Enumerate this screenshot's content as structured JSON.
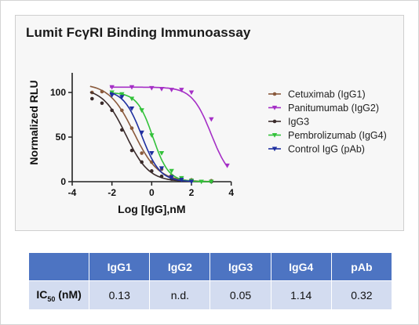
{
  "chart_data": {
    "type": "line",
    "title": "Lumit FcγRI Binding Immunoassay",
    "xlabel": "Log [IgG],nM",
    "ylabel": "Normalized RLU",
    "xlim": [
      -4,
      5
    ],
    "ylim": [
      0,
      115
    ],
    "x_ticks": [
      -4,
      -2,
      0,
      2,
      4
    ],
    "y_ticks": [
      0,
      50,
      100
    ],
    "legend_position": "right",
    "grid": false,
    "series": [
      {
        "name": "Cetuximab (IgG1)",
        "color": "#8a5a3c",
        "marker": "circle",
        "curve": {
          "top": 110,
          "bottom": 0,
          "log_ic50": -0.9,
          "hill": 0.7
        },
        "x": [
          -3.0,
          -2.5,
          -2.0,
          -1.5,
          -1.0,
          -0.5,
          0.0,
          0.5,
          1.0,
          1.5,
          2.0,
          3.0
        ],
        "y": [
          100,
          101,
          98,
          80,
          60,
          32,
          22,
          14,
          7,
          4,
          2,
          1
        ]
      },
      {
        "name": "Panitumumab (IgG2)",
        "color": "#a52fc6",
        "marker": "triangle-down",
        "curve": {
          "top": 106,
          "bottom": 0,
          "log_ic50": 3.0,
          "hill": 0.9
        },
        "x": [
          -2.0,
          -1.0,
          0.0,
          0.5,
          1.0,
          1.5,
          2.0,
          3.0,
          3.8
        ],
        "y": [
          106,
          106,
          105,
          104,
          103,
          103,
          100,
          70,
          18
        ]
      },
      {
        "name": "IgG3",
        "color": "#3a2b2b",
        "marker": "circle",
        "curve": {
          "top": 105,
          "bottom": 0,
          "log_ic50": -1.3,
          "hill": 0.75
        },
        "x": [
          -3.0,
          -2.5,
          -2.0,
          -1.5,
          -1.0,
          -0.5,
          0.0,
          0.5,
          1.0,
          1.5,
          2.0,
          3.0
        ],
        "y": [
          93,
          88,
          80,
          58,
          35,
          22,
          12,
          6,
          3,
          2,
          1,
          0
        ]
      },
      {
        "name": "Pembrolizumab (IgG4)",
        "color": "#33c23a",
        "marker": "triangle-down",
        "curve": {
          "top": 100,
          "bottom": 0,
          "log_ic50": 0.06,
          "hill": 1.1
        },
        "x": [
          -2.0,
          -1.5,
          -1.0,
          -0.5,
          0.0,
          0.5,
          1.0,
          1.5,
          2.0,
          2.5,
          3.0
        ],
        "y": [
          100,
          98,
          93,
          80,
          52,
          32,
          12,
          4,
          1,
          0,
          0
        ]
      },
      {
        "name": "Control IgG (pAb)",
        "color": "#1f2fa0",
        "marker": "triangle-down",
        "curve": {
          "top": 103,
          "bottom": 0,
          "log_ic50": -0.5,
          "hill": 0.95
        },
        "x": [
          -2.0,
          -1.5,
          -1.0,
          -0.5,
          0.0,
          0.5,
          1.0,
          1.5,
          2.0
        ],
        "y": [
          97,
          95,
          82,
          55,
          32,
          15,
          5,
          2,
          0
        ]
      }
    ]
  },
  "table": {
    "header": [
      "",
      "IgG1",
      "IgG2",
      "IgG3",
      "IgG4",
      "pAb"
    ],
    "row_label_main": "IC",
    "row_label_sub": "50",
    "row_label_unit": " (nM)",
    "values": [
      "0.13",
      "n.d.",
      "0.05",
      "1.14",
      "0.32"
    ]
  }
}
